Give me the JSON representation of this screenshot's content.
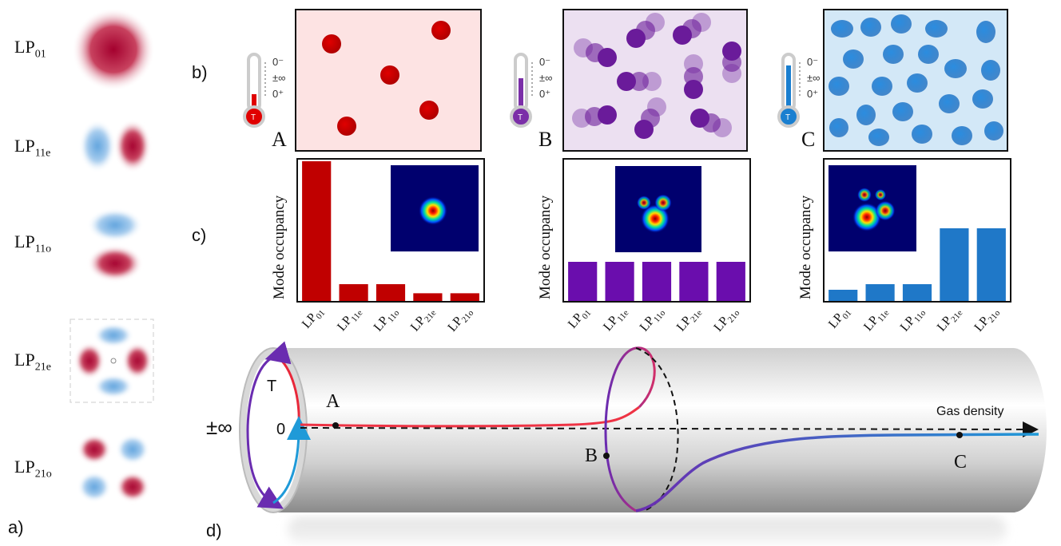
{
  "panels": {
    "a": "a)",
    "b": "b)",
    "c": "c)",
    "d": "d)"
  },
  "modes": [
    {
      "base": "LP",
      "sub": "01"
    },
    {
      "base": "LP",
      "sub": "11e"
    },
    {
      "base": "LP",
      "sub": "11o"
    },
    {
      "base": "LP",
      "sub": "21e"
    },
    {
      "base": "LP",
      "sub": "21o"
    }
  ],
  "thermometer": {
    "labels": [
      "0⁻",
      "±∞",
      "0⁺"
    ],
    "bulb_label": "T"
  },
  "states": [
    {
      "letter": "A",
      "color": "#cc0000",
      "background": "#fde3e3",
      "level": "low"
    },
    {
      "letter": "B",
      "color": "#6a1b9a",
      "background": "#ece0f1",
      "level": "mid"
    },
    {
      "letter": "C",
      "color": "#1a7fd0",
      "background": "#d3e8f7",
      "level": "high"
    }
  ],
  "chart_data": [
    {
      "type": "bar",
      "ylabel": "Mode occupancy",
      "categories": [
        {
          "base": "LP",
          "sub": "01"
        },
        {
          "base": "LP",
          "sub": "11e"
        },
        {
          "base": "LP",
          "sub": "11o"
        },
        {
          "base": "LP",
          "sub": "21e"
        },
        {
          "base": "LP",
          "sub": "21o"
        }
      ],
      "values": [
        1.0,
        0.12,
        0.12,
        0.055,
        0.055
      ],
      "ylim": [
        0,
        1
      ],
      "color": "#c00000"
    },
    {
      "type": "bar",
      "ylabel": "Mode occupancy",
      "categories": [
        {
          "base": "LP",
          "sub": "01"
        },
        {
          "base": "LP",
          "sub": "11e"
        },
        {
          "base": "LP",
          "sub": "11o"
        },
        {
          "base": "LP",
          "sub": "21e"
        },
        {
          "base": "LP",
          "sub": "21o"
        }
      ],
      "values": [
        0.28,
        0.28,
        0.28,
        0.28,
        0.28
      ],
      "ylim": [
        0,
        1
      ],
      "color": "#6a0dad"
    },
    {
      "type": "bar",
      "ylabel": "Mode occupancy",
      "categories": [
        {
          "base": "LP",
          "sub": "01"
        },
        {
          "base": "LP",
          "sub": "11e"
        },
        {
          "base": "LP",
          "sub": "11o"
        },
        {
          "base": "LP",
          "sub": "21e"
        },
        {
          "base": "LP",
          "sub": "21o"
        }
      ],
      "values": [
        0.08,
        0.12,
        0.12,
        0.52,
        0.52
      ],
      "ylim": [
        0,
        1
      ],
      "color": "#1f78c8"
    }
  ],
  "diagram": {
    "axis_label": "Gas density",
    "infinity_label": "±∞",
    "zero_label": "0",
    "t_label": "T",
    "points": [
      "A",
      "B",
      "C"
    ]
  }
}
